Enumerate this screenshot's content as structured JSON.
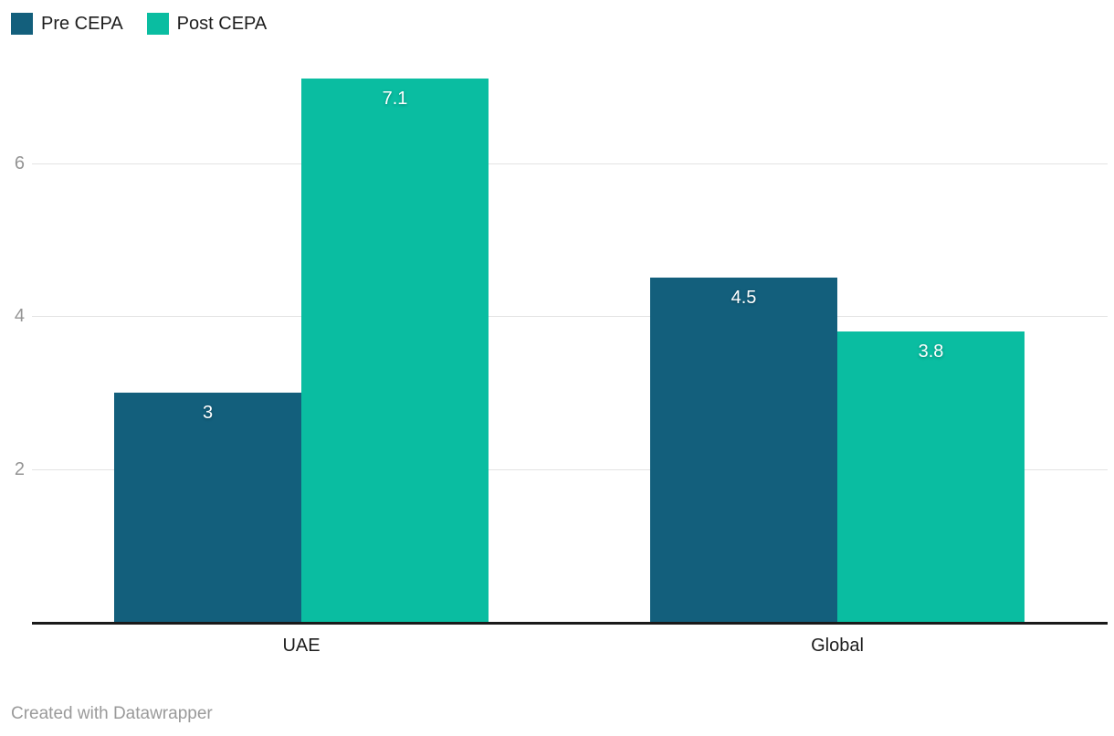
{
  "chart_data": {
    "type": "bar",
    "title": "",
    "xlabel": "",
    "ylabel": "",
    "categories": [
      "UAE",
      "Global"
    ],
    "series": [
      {
        "name": "Pre CEPA",
        "color": "#135F7C",
        "values": [
          3,
          4.5
        ],
        "value_labels": [
          "3",
          "4.5"
        ]
      },
      {
        "name": "Post CEPA",
        "color": "#0ABDA1",
        "values": [
          7.1,
          3.8
        ],
        "value_labels": [
          "7.1",
          "3.8"
        ]
      }
    ],
    "ylim": [
      0,
      7.2
    ],
    "yticks": [
      2,
      4,
      6
    ],
    "ytick_labels": [
      "2",
      "4",
      "6"
    ],
    "grid": "horizontal-lines-at-yticks",
    "legend_position": "top-left",
    "value_label_position": "inside-top"
  },
  "footer": {
    "credit": "Created with Datawrapper"
  },
  "colors": {
    "background": "#ffffff",
    "axis_line": "#1a1a1a",
    "gridline": "#e3e3e3",
    "tick_label": "#949494",
    "category_label": "#1d1d1d",
    "legend_label": "#1d1d1d",
    "value_label": "#ffffff",
    "footer_text": "#9a9a9a"
  }
}
